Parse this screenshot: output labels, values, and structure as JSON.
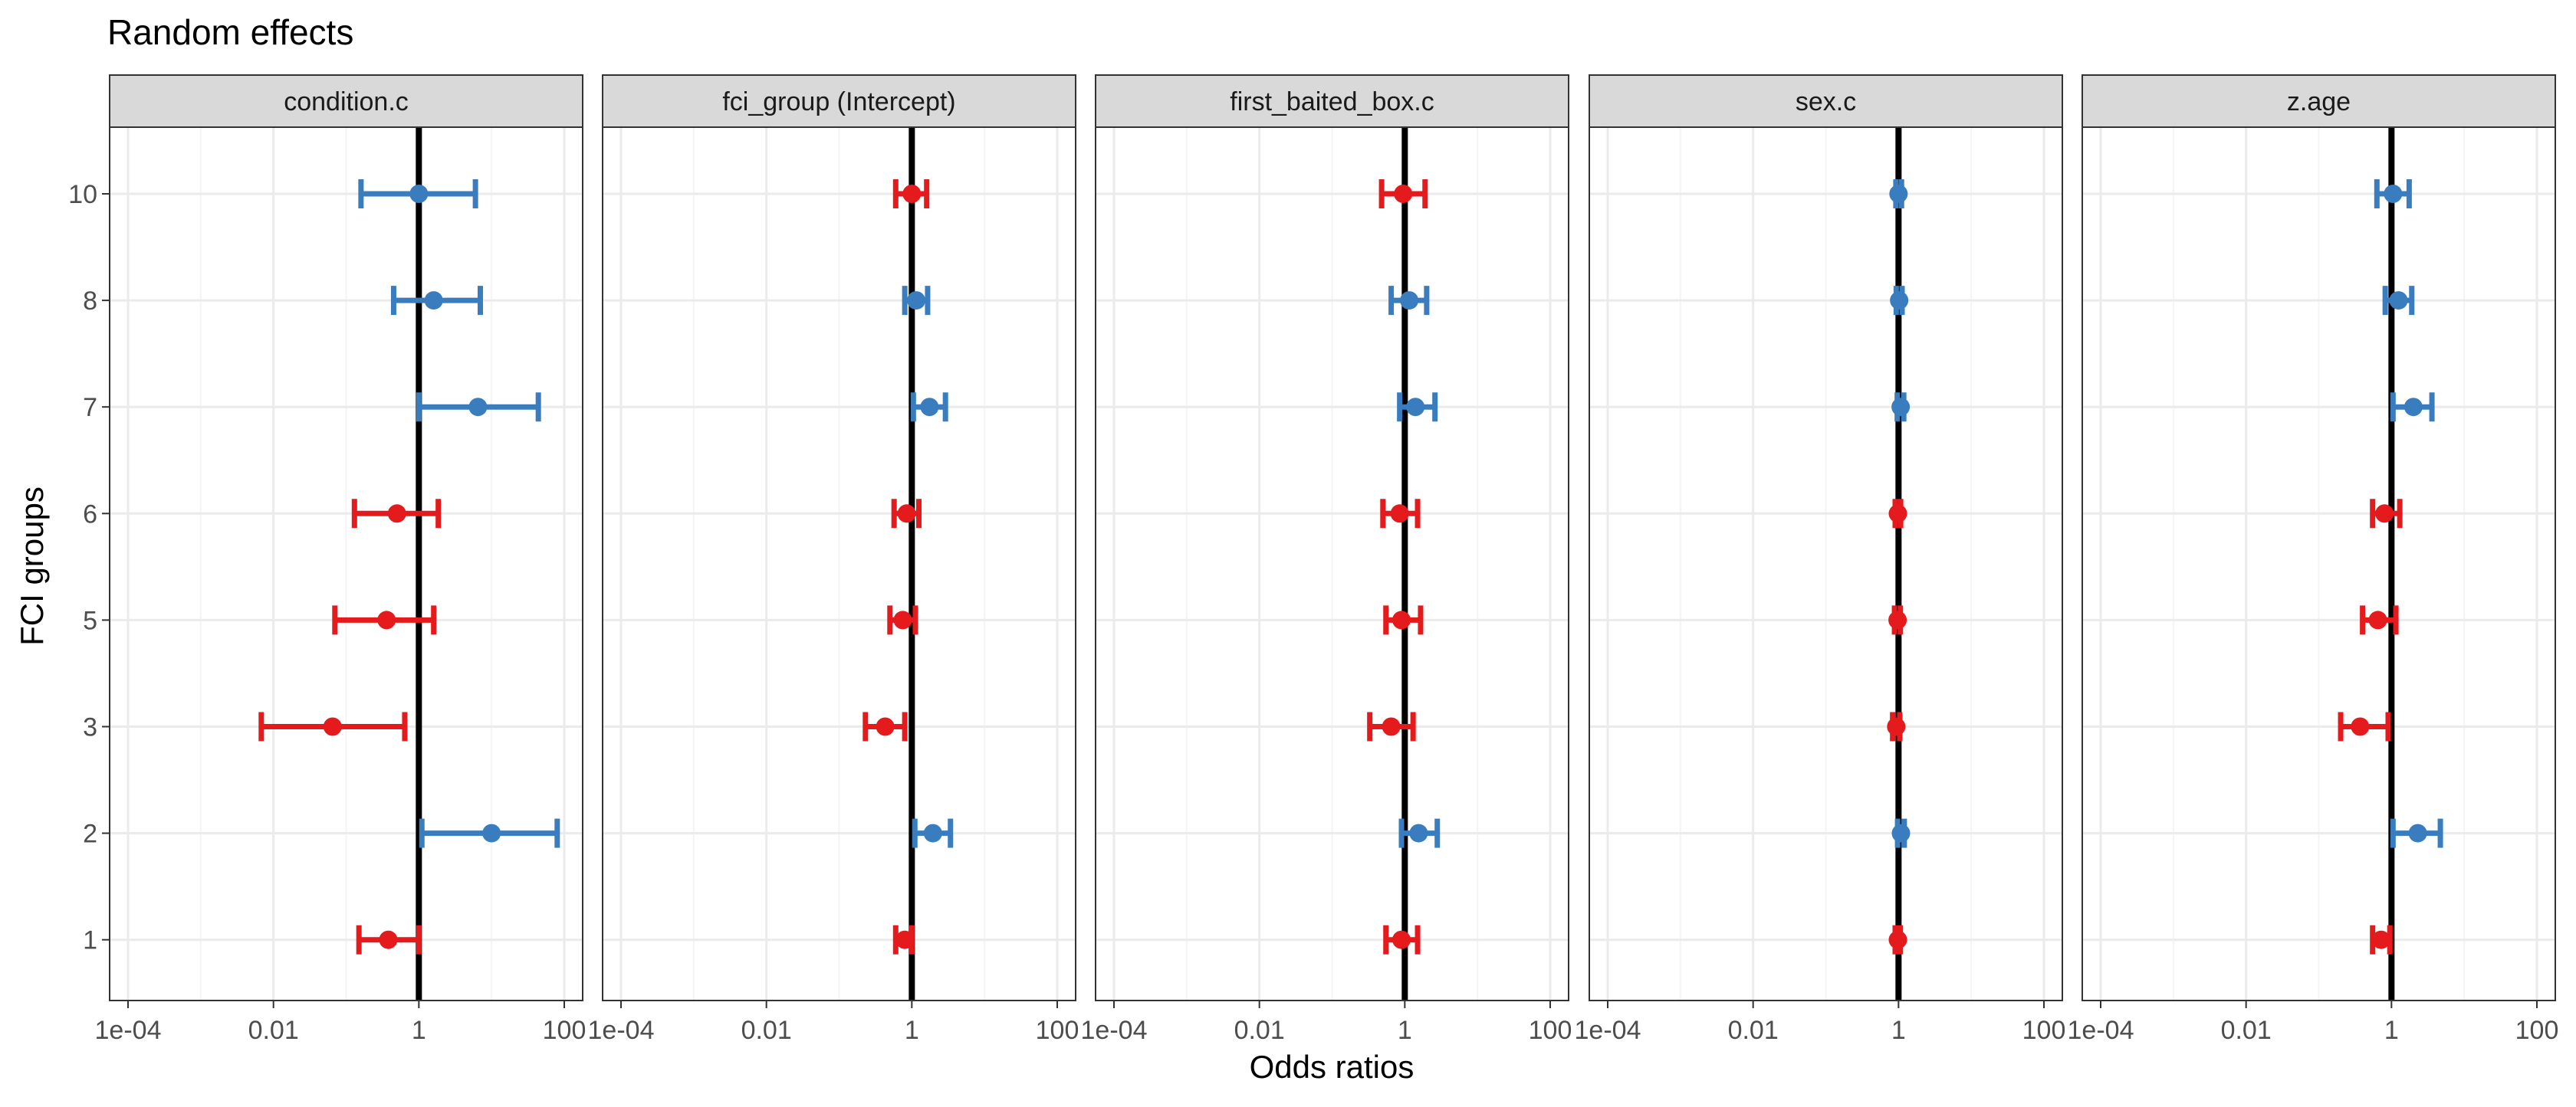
{
  "chart_data": {
    "type": "scatter",
    "title": "Random effects",
    "xlabel": "Odds ratios",
    "ylabel": "FCI groups",
    "x_scale": "log10",
    "xlim": [
      0.0001,
      100
    ],
    "x_ticks": [
      {
        "value": 0.0001,
        "label": "1e-04"
      },
      {
        "value": 0.01,
        "label": "0.01"
      },
      {
        "value": 1,
        "label": "1"
      },
      {
        "value": 100,
        "label": "100"
      }
    ],
    "y_categories": [
      "10",
      "8",
      "7",
      "6",
      "5",
      "3",
      "2",
      "1"
    ],
    "reference_line": 1,
    "grid": true,
    "legend": "none",
    "colors": {
      "positive": "#3A7DBE",
      "negative": "#E41A1C",
      "strip_fill": "#D9D9D9",
      "grid": "#EBEBEB",
      "reference": "#000000"
    },
    "panels": [
      {
        "title": "condition.c",
        "points": [
          {
            "group": "10",
            "or": 1.0,
            "low": 0.16,
            "high": 6.0,
            "color": "positive"
          },
          {
            "group": "8",
            "or": 1.6,
            "low": 0.45,
            "high": 7.0,
            "color": "positive"
          },
          {
            "group": "7",
            "or": 6.5,
            "low": 1.0,
            "high": 44.0,
            "color": "positive"
          },
          {
            "group": "6",
            "or": 0.5,
            "low": 0.13,
            "high": 1.85,
            "color": "negative"
          },
          {
            "group": "5",
            "or": 0.36,
            "low": 0.07,
            "high": 1.6,
            "color": "negative"
          },
          {
            "group": "3",
            "or": 0.065,
            "low": 0.0068,
            "high": 0.64,
            "color": "negative"
          },
          {
            "group": "2",
            "or": 10.0,
            "low": 1.1,
            "high": 80.0,
            "color": "positive"
          },
          {
            "group": "1",
            "or": 0.38,
            "low": 0.15,
            "high": 1.0,
            "color": "negative"
          }
        ]
      },
      {
        "title": "fci_group (Intercept)",
        "points": [
          {
            "group": "10",
            "or": 1.0,
            "low": 0.6,
            "high": 1.6,
            "color": "negative"
          },
          {
            "group": "8",
            "or": 1.15,
            "low": 0.8,
            "high": 1.65,
            "color": "positive"
          },
          {
            "group": "7",
            "or": 1.75,
            "low": 1.05,
            "high": 2.9,
            "color": "positive"
          },
          {
            "group": "6",
            "or": 0.85,
            "low": 0.57,
            "high": 1.25,
            "color": "negative"
          },
          {
            "group": "5",
            "or": 0.75,
            "low": 0.5,
            "high": 1.12,
            "color": "negative"
          },
          {
            "group": "3",
            "or": 0.43,
            "low": 0.23,
            "high": 0.8,
            "color": "negative"
          },
          {
            "group": "2",
            "or": 1.95,
            "low": 1.1,
            "high": 3.4,
            "color": "positive"
          },
          {
            "group": "1",
            "or": 0.8,
            "low": 0.6,
            "high": 1.0,
            "color": "negative"
          }
        ]
      },
      {
        "title": "first_baited_box.c",
        "points": [
          {
            "group": "10",
            "or": 0.95,
            "low": 0.48,
            "high": 1.9,
            "color": "negative"
          },
          {
            "group": "8",
            "or": 1.15,
            "low": 0.65,
            "high": 2.0,
            "color": "positive"
          },
          {
            "group": "7",
            "or": 1.4,
            "low": 0.85,
            "high": 2.6,
            "color": "positive"
          },
          {
            "group": "6",
            "or": 0.85,
            "low": 0.5,
            "high": 1.5,
            "color": "negative"
          },
          {
            "group": "5",
            "or": 0.9,
            "low": 0.55,
            "high": 1.65,
            "color": "negative"
          },
          {
            "group": "3",
            "or": 0.65,
            "low": 0.33,
            "high": 1.3,
            "color": "negative"
          },
          {
            "group": "2",
            "or": 1.55,
            "low": 0.9,
            "high": 2.8,
            "color": "positive"
          },
          {
            "group": "1",
            "or": 0.9,
            "low": 0.55,
            "high": 1.5,
            "color": "negative"
          }
        ]
      },
      {
        "title": "sex.c",
        "points": [
          {
            "group": "10",
            "or": 1.0,
            "low": 0.92,
            "high": 1.1,
            "color": "positive"
          },
          {
            "group": "8",
            "or": 1.02,
            "low": 0.93,
            "high": 1.12,
            "color": "positive"
          },
          {
            "group": "7",
            "or": 1.07,
            "low": 0.96,
            "high": 1.18,
            "color": "positive"
          },
          {
            "group": "6",
            "or": 0.98,
            "low": 0.9,
            "high": 1.07,
            "color": "negative"
          },
          {
            "group": "5",
            "or": 0.97,
            "low": 0.88,
            "high": 1.06,
            "color": "negative"
          },
          {
            "group": "3",
            "or": 0.93,
            "low": 0.83,
            "high": 1.04,
            "color": "negative"
          },
          {
            "group": "2",
            "or": 1.08,
            "low": 0.97,
            "high": 1.2,
            "color": "positive"
          },
          {
            "group": "1",
            "or": 0.98,
            "low": 0.9,
            "high": 1.06,
            "color": "negative"
          }
        ]
      },
      {
        "title": "z.age",
        "points": [
          {
            "group": "10",
            "or": 1.05,
            "low": 0.63,
            "high": 1.75,
            "color": "positive"
          },
          {
            "group": "8",
            "or": 1.25,
            "low": 0.82,
            "high": 1.9,
            "color": "positive"
          },
          {
            "group": "7",
            "or": 2.0,
            "low": 1.05,
            "high": 3.6,
            "color": "positive"
          },
          {
            "group": "6",
            "or": 0.8,
            "low": 0.55,
            "high": 1.3,
            "color": "negative"
          },
          {
            "group": "5",
            "or": 0.65,
            "low": 0.4,
            "high": 1.15,
            "color": "negative"
          },
          {
            "group": "3",
            "or": 0.37,
            "low": 0.2,
            "high": 0.9,
            "color": "negative"
          },
          {
            "group": "2",
            "or": 2.3,
            "low": 1.05,
            "high": 4.7,
            "color": "positive"
          },
          {
            "group": "1",
            "or": 0.72,
            "low": 0.55,
            "high": 0.95,
            "color": "negative"
          }
        ]
      }
    ]
  }
}
